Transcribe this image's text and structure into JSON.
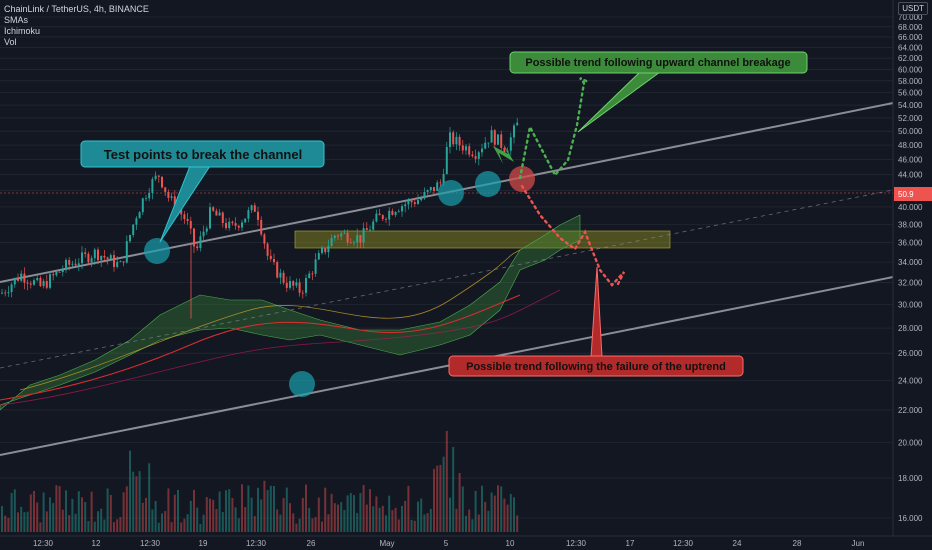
{
  "header": {
    "symbol_line": "ChainLink / TetherUS, 4h, BINANCE",
    "indicators": [
      "SMAs",
      "Ichimoku",
      "Vol"
    ],
    "currency": "USDT"
  },
  "colors": {
    "background": "#131722",
    "grid": "#2a2e39",
    "up": "#26a69a",
    "down": "#ef5350",
    "channel": "#8a8d96",
    "zone": "#8b8a1f",
    "callout_teal": "#1e8a96",
    "callout_green": "#3b8b3a",
    "callout_red": "#b32a2a"
  },
  "chart_data": {
    "type": "candlestick",
    "y_axis": {
      "ticks": [
        "16.000",
        "18.000",
        "20.000",
        "22.000",
        "24.000",
        "26.000",
        "28.000",
        "30.000",
        "32.000",
        "34.000",
        "36.000",
        "38.000",
        "40.000",
        "42.000",
        "44.000",
        "46.000",
        "48.000",
        "50.000",
        "52.000",
        "54.000",
        "56.000",
        "58.000",
        "60.000",
        "62.000",
        "64.000",
        "66.000",
        "68.000",
        "70.000"
      ],
      "scale": "log"
    },
    "x_axis": {
      "ticks": [
        "12:30",
        "12",
        "12:30",
        "19",
        "12:30",
        "26",
        "May",
        "5",
        "10",
        "12:30",
        "17",
        "12:30",
        "24",
        "28",
        "Jun"
      ]
    },
    "last_price_label": "50.9",
    "annotations": {
      "test_points": "Test points to break the channel",
      "up_scenario": "Possible trend following upward channel breakage",
      "down_scenario": "Possible trend following the failure of the uptrend"
    }
  }
}
